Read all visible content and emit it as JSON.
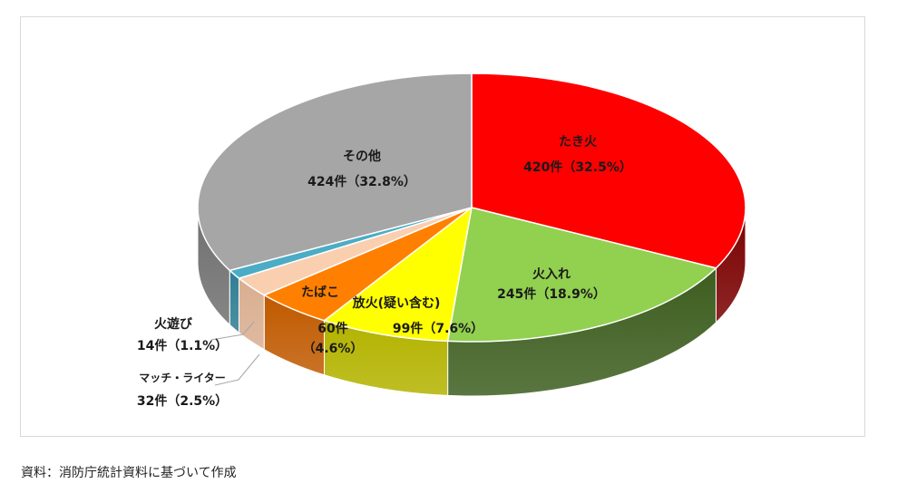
{
  "chart_data": {
    "type": "pie",
    "style": "3d",
    "unit": "件",
    "slices": [
      {
        "name": "たき火",
        "value": 420,
        "percent": 32.5,
        "value_label": "420件（32.5%）",
        "color": "#ff0000",
        "side_color": "#7a0000"
      },
      {
        "name": "火入れ",
        "value": 245,
        "percent": 18.9,
        "value_label": "245件（18.9%）",
        "color": "#92d050",
        "side_color": "#3d5e1f"
      },
      {
        "name": "放火(疑い含む)",
        "value": 99,
        "percent": 7.6,
        "value_label": "99件（7.6%）",
        "color": "#ffff00",
        "side_color": "#b3b300"
      },
      {
        "name": "たばこ",
        "value": 60,
        "percent": 4.6,
        "value_label": "60件（4.6%）",
        "value_label_lines": [
          "60件",
          "（4.6%）"
        ],
        "color": "#ff8000",
        "side_color": "#c05a00"
      },
      {
        "name": "マッチ・ライター",
        "value": 32,
        "percent": 2.5,
        "value_label": "32件（2.5%）",
        "color": "#f9cfb0",
        "side_color": "#d9ae90"
      },
      {
        "name": "火遊び",
        "value": 14,
        "percent": 1.1,
        "value_label": "14件（1.1%）",
        "color": "#4bacc6",
        "side_color": "#2e7d94"
      },
      {
        "name": "その他",
        "value": 424,
        "percent": 32.8,
        "value_label": "424件（32.8%）",
        "color": "#a6a6a6",
        "side_color": "#707070"
      }
    ]
  },
  "source_note": "資料：消防庁統計資料に基づいて作成"
}
